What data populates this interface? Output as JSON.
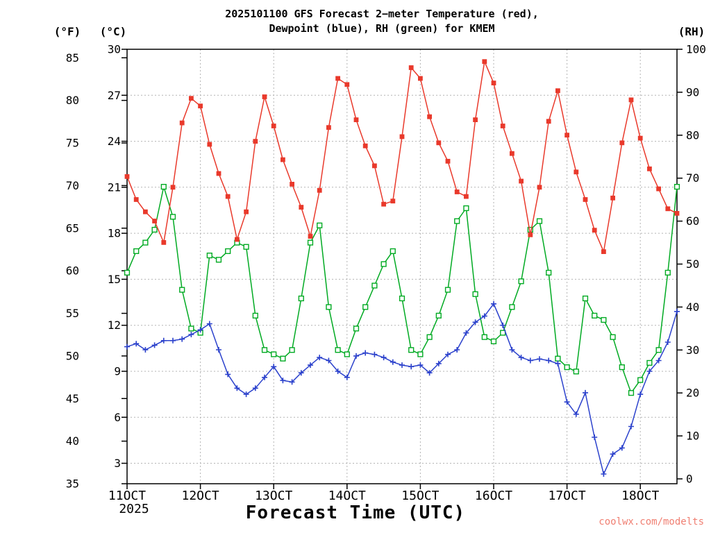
{
  "watermark": "coolwx.com/modelts",
  "chart_data": {
    "type": "line",
    "title_line1": "2025101100 GFS Forecast 2−meter Temperature (red),",
    "title_line2": "Dewpoint (blue), RH (green) for KMEM",
    "model": "GFS",
    "init_time": "2025101100",
    "station": "KMEM",
    "grid": true,
    "x_axis": {
      "title": "Forecast Time (UTC)",
      "year_label": "2025",
      "day_labels": [
        "11OCT",
        "12OCT",
        "13OCT",
        "14OCT",
        "15OCT",
        "16OCT",
        "17OCT",
        "18OCT"
      ],
      "forecast_hours": [
        0,
        3,
        6,
        9,
        12,
        15,
        18,
        21,
        24,
        27,
        30,
        33,
        36,
        39,
        42,
        45,
        48,
        51,
        54,
        57,
        60,
        63,
        66,
        69,
        72,
        75,
        78,
        81,
        84,
        87,
        90,
        93,
        96,
        99,
        102,
        105,
        108,
        111,
        114,
        117,
        120,
        123,
        126,
        129,
        132,
        135,
        138,
        141,
        144,
        147,
        150,
        153,
        156,
        159,
        162,
        165,
        168,
        171,
        174,
        177,
        180
      ]
    },
    "y_axes": {
      "fahrenheit": {
        "unit": "(°F)",
        "ticks": [
          85,
          80,
          75,
          70,
          65,
          60,
          55,
          50,
          45,
          40,
          35
        ],
        "range": [
          35,
          86
        ]
      },
      "celsius": {
        "unit": "(°C)",
        "ticks": [
          30,
          27,
          24,
          21,
          18,
          15,
          12,
          9,
          6,
          3
        ],
        "range": [
          1.7,
          30
        ]
      },
      "rh": {
        "unit": "(RH)",
        "ticks": [
          100,
          90,
          80,
          70,
          60,
          50,
          40,
          30,
          20,
          10,
          0
        ],
        "range": [
          0,
          100
        ]
      }
    },
    "series": [
      {
        "name": "2-meter Temperature",
        "unit": "°C",
        "color": "#e9392b",
        "marker": "filled-square",
        "values": [
          21.7,
          20.2,
          19.4,
          18.8,
          17.4,
          21.0,
          25.2,
          26.8,
          26.3,
          23.8,
          21.9,
          20.4,
          17.6,
          19.4,
          24.0,
          26.9,
          25.0,
          22.8,
          21.2,
          19.7,
          17.8,
          20.8,
          24.9,
          28.1,
          27.7,
          25.4,
          23.7,
          22.4,
          19.9,
          20.1,
          24.3,
          28.8,
          28.1,
          25.6,
          23.9,
          22.7,
          20.7,
          20.4,
          25.4,
          29.2,
          27.8,
          25.0,
          23.2,
          21.4,
          17.9,
          21.0,
          25.3,
          27.3,
          24.4,
          22.0,
          20.2,
          18.2,
          16.8,
          20.3,
          23.9,
          26.7,
          24.2,
          22.2,
          20.9,
          19.6,
          19.3
        ]
      },
      {
        "name": "Dewpoint",
        "unit": "°C",
        "color": "#2b41cc",
        "marker": "plus",
        "values": [
          10.6,
          10.8,
          10.4,
          10.7,
          11.0,
          11.0,
          11.1,
          11.4,
          11.7,
          12.1,
          10.4,
          8.8,
          7.9,
          7.5,
          7.9,
          8.6,
          9.3,
          8.4,
          8.3,
          8.9,
          9.4,
          9.9,
          9.7,
          9.0,
          8.6,
          10.0,
          10.2,
          10.1,
          9.9,
          9.6,
          9.4,
          9.3,
          9.4,
          8.9,
          9.5,
          10.1,
          10.4,
          11.5,
          12.2,
          12.6,
          13.4,
          12.0,
          10.4,
          9.9,
          9.7,
          9.8,
          9.7,
          9.5,
          7.0,
          6.2,
          7.6,
          4.7,
          2.3,
          3.6,
          4.0,
          5.4,
          7.5,
          9.0,
          9.7,
          10.9,
          12.9
        ]
      },
      {
        "name": "Relative Humidity",
        "unit": "%",
        "color": "#00aa22",
        "marker": "open-square",
        "values": [
          48,
          53,
          55,
          58,
          68,
          61,
          44,
          35,
          34,
          52,
          51,
          53,
          55,
          54,
          38,
          30,
          29,
          28,
          30,
          42,
          55,
          59,
          40,
          30,
          29,
          35,
          40,
          45,
          50,
          53,
          42,
          30,
          29,
          33,
          38,
          44,
          60,
          63,
          43,
          33,
          32,
          34,
          40,
          46,
          58,
          60,
          48,
          28,
          26,
          25,
          42,
          38,
          37,
          33,
          26,
          20,
          23,
          27,
          30,
          48,
          68
        ]
      }
    ]
  }
}
